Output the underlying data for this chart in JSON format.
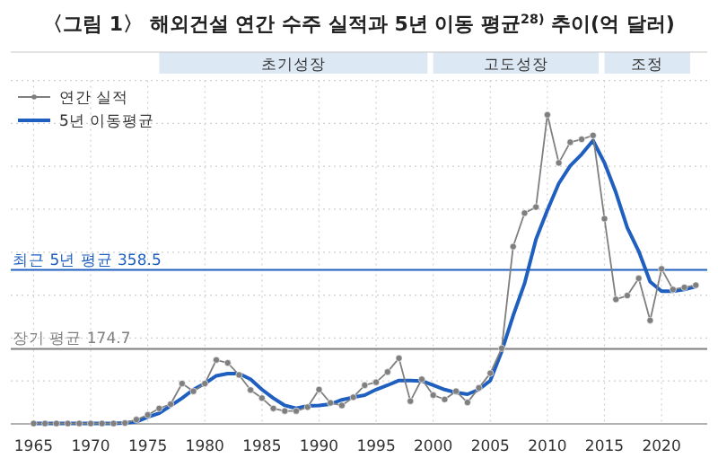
{
  "chart_data": {
    "type": "line",
    "title": "〈그림 1〉 해외건설 연간 수주 실적과 5년 이동 평균$^{28)}$ 추이(억 달러)",
    "x": [
      1965,
      1966,
      1967,
      1968,
      1969,
      1970,
      1971,
      1972,
      1973,
      1974,
      1975,
      1976,
      1977,
      1978,
      1979,
      1980,
      1981,
      1982,
      1983,
      1984,
      1985,
      1986,
      1987,
      1988,
      1989,
      1990,
      1991,
      1992,
      1993,
      1994,
      1995,
      1996,
      1997,
      1998,
      1999,
      2000,
      2001,
      2002,
      2003,
      2004,
      2005,
      2006,
      2007,
      2008,
      2009,
      2010,
      2011,
      2012,
      2013,
      2014,
      2015,
      2016,
      2017,
      2018,
      2019,
      2020,
      2021,
      2022,
      2023
    ],
    "series": [
      {
        "name": "연간 실적",
        "color": "#7f7f7f",
        "marker": "circle",
        "values": [
          1,
          1,
          1,
          1,
          1,
          1,
          1,
          1,
          2,
          10,
          21,
          36,
          46,
          94,
          76,
          94,
          149,
          142,
          114,
          79,
          60,
          36,
          30,
          30,
          39,
          80,
          49,
          43,
          62,
          90,
          97,
          121,
          153,
          53,
          104,
          67,
          57,
          76,
          50,
          84,
          118,
          176,
          413,
          491,
          505,
          720,
          608,
          656,
          663,
          672,
          478,
          290,
          299,
          339,
          241,
          361,
          313,
          318,
          323
        ]
      },
      {
        "name": "5년 이동평균",
        "color": "#1f5fbf",
        "marker": "none",
        "values": [
          1,
          1,
          1,
          1,
          1,
          1,
          1,
          1,
          2,
          5,
          16,
          25,
          42,
          60,
          80,
          94,
          112,
          117,
          117,
          104,
          80,
          60,
          43,
          36,
          42,
          43,
          46,
          56,
          62,
          67,
          80,
          90,
          101,
          101,
          100,
          90,
          80,
          73,
          69,
          80,
          101,
          169,
          252,
          327,
          430,
          498,
          560,
          601,
          628,
          660,
          608,
          539,
          457,
          402,
          331,
          309,
          309,
          313,
          320
        ]
      }
    ],
    "xlim": [
      1963,
      2024
    ],
    "xticks": [
      1965,
      1970,
      1975,
      1980,
      1985,
      1990,
      1995,
      2000,
      2005,
      2010,
      2015,
      2020
    ],
    "ylim": [
      0,
      866
    ],
    "yticks": [
      {
        "value": 0,
        "label": null
      },
      {
        "value": 100,
        "label": null
      },
      {
        "value": 200,
        "label": null
      },
      {
        "value": 300,
        "label": null
      },
      {
        "value": 400,
        "label": null
      },
      {
        "value": 500,
        "label": null
      },
      {
        "value": 600,
        "label": null
      },
      {
        "value": 700,
        "label": null
      },
      {
        "value": 800,
        "label": null
      }
    ],
    "tick_labels": "x",
    "grid": true,
    "legend": "top left",
    "ref_lines": [
      {
        "axis": "y",
        "value": 358.5,
        "label": "최근 5년 평균 358.5",
        "color": "#1f5fbf"
      },
      {
        "axis": "y",
        "value": 174.7,
        "label": "장기 평균 174.7",
        "color": "#7f7f7f"
      }
    ],
    "bands": [
      {
        "axis": "x",
        "from": 1976,
        "to": 1999.5,
        "label": "초기성장",
        "color": "#dde8f5"
      },
      {
        "axis": "x",
        "from": 2000,
        "to": 2014.5,
        "label": "고도성장",
        "color": "#dde8f5"
      },
      {
        "axis": "x",
        "from": 2015,
        "to": 2022.5,
        "label": "조정",
        "color": "#dde8f5"
      }
    ]
  }
}
